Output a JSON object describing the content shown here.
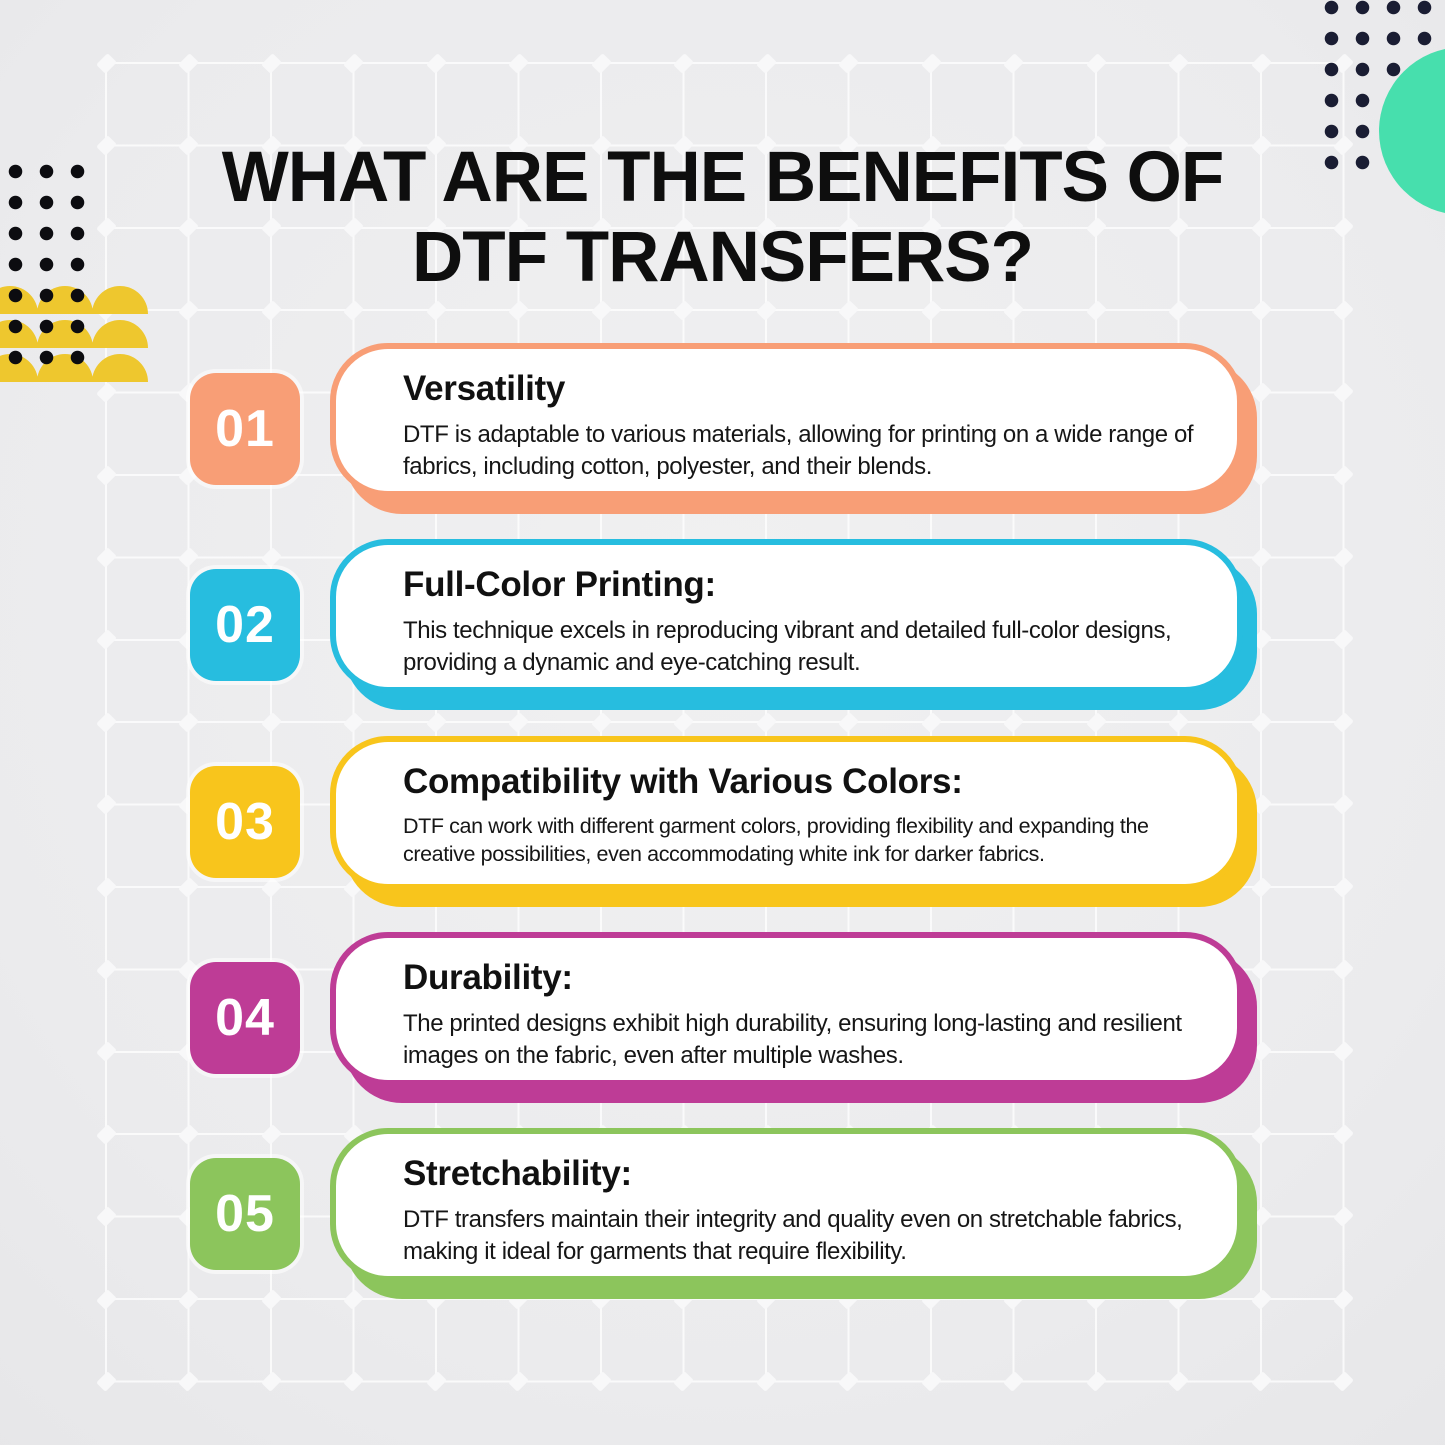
{
  "page": {
    "title": "WHAT ARE THE BENEFITS OF DTF TRANSFERS?"
  },
  "cards": [
    {
      "number": "01",
      "title": "Versatility",
      "body": "DTF is adaptable to various materials, allowing for printing on a wide range of fabrics, including cotton, polyester, and their blends.",
      "color": "#F89E76"
    },
    {
      "number": "02",
      "title": "Full-Color Printing:",
      "body": "This technique excels in reproducing vibrant and detailed full-color designs, providing a dynamic and eye-catching result.",
      "color": "#27BDDF"
    },
    {
      "number": "03",
      "title": "Compatibility with Various Colors:",
      "body": "DTF can work with different garment colors, providing flexibility and expanding the creative possibilities, even accommodating white ink for darker fabrics.",
      "color": "#F8C51C"
    },
    {
      "number": "04",
      "title": "Durability:",
      "body": "The printed designs exhibit high durability, ensuring long-lasting and resilient images on the fabric, even after multiple washes.",
      "color": "#BE3C96"
    },
    {
      "number": "05",
      "title": "Stretchability:",
      "body": "DTF transfers maintain their integrity and quality even on stretchable fabrics, making it ideal for garments that require flexibility.",
      "color": "#8CC55C"
    }
  ],
  "decorations": {
    "grid_line_color": "#FFFFFF",
    "dots_top_right_color": "#1A1D33",
    "dots_left_color": "#0C0C10",
    "teal_circle_color": "#47DFAD",
    "scallop_color": "#EEC72E"
  }
}
